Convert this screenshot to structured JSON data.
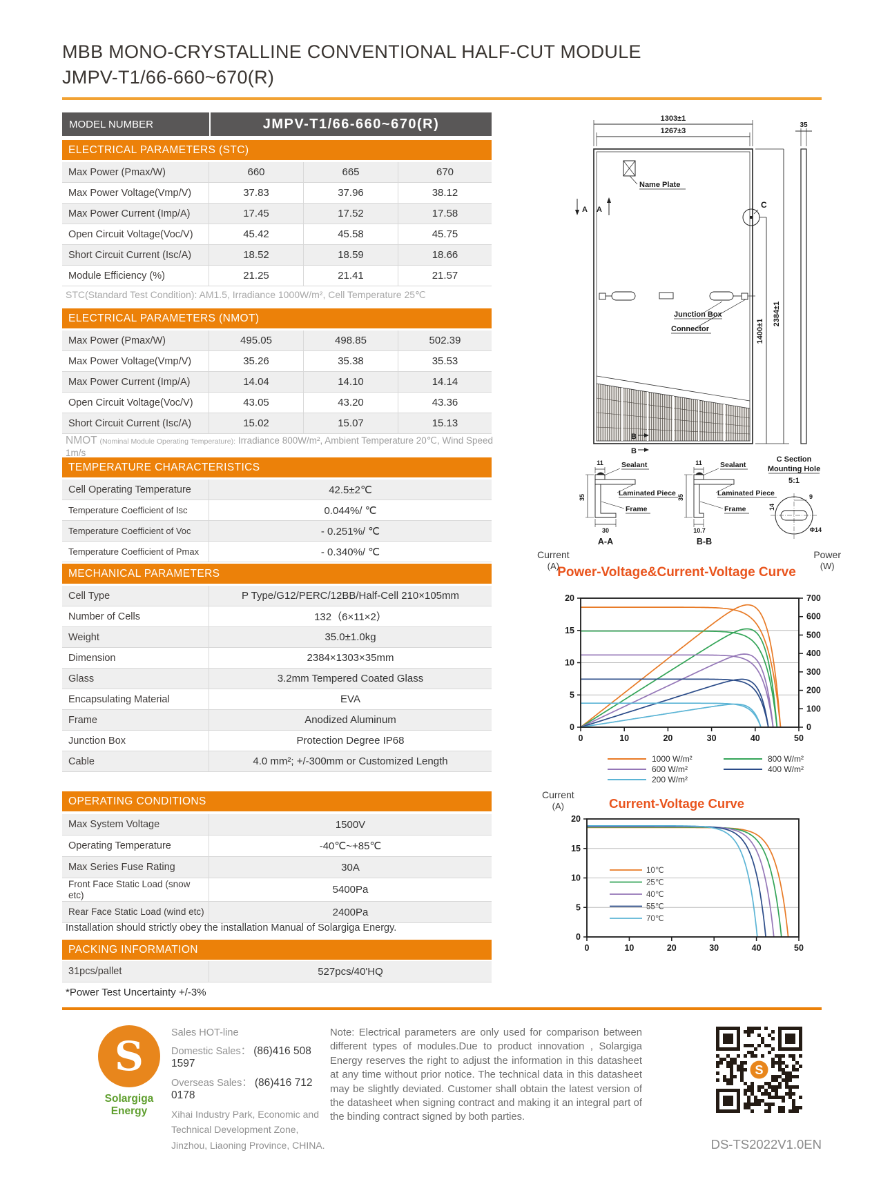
{
  "page": {
    "title_line1": "MBB MONO-CRYSTALLINE CONVENTIONAL HALF-CUT MODULE",
    "title_line2": "JMPV-T1/66-660~670(R)",
    "doc_code": "DS-TS2022V1.0EN"
  },
  "model": {
    "label": "MODEL NUMBER",
    "value": "JMPV-T1/66-660~670(R)"
  },
  "sections": {
    "stc": {
      "header": "ELECTRICAL PARAMETERS  (STC)",
      "rows": [
        [
          "Max Power (Pmax/W)",
          "660",
          "665",
          "670"
        ],
        [
          "Max Power Voltage(Vmp/V)",
          "37.83",
          "37.96",
          "38.12"
        ],
        [
          "Max Power Current (Imp/A)",
          "17.45",
          "17.52",
          "17.58"
        ],
        [
          "Open Circuit Voltage(Voc/V)",
          "45.42",
          "45.58",
          "45.75"
        ],
        [
          "Short Circuit Current (Isc/A)",
          "18.52",
          "18.59",
          "18.66"
        ],
        [
          "Module Efficiency (%)",
          "21.25",
          "21.41",
          "21.57"
        ]
      ],
      "footnote": "STC(Standard Test Condition): AM1.5, Irradiance 1000W/m², Cell Temperature 25℃"
    },
    "nmot": {
      "header": "ELECTRICAL PARAMETERS  (NMOT)",
      "rows": [
        [
          "Max Power (Pmax/W)",
          "495.05",
          "498.85",
          "502.39"
        ],
        [
          "Max Power Voltage(Vmp/V)",
          "35.26",
          "35.38",
          "35.53"
        ],
        [
          "Max Power Current (Imp/A)",
          "14.04",
          "14.10",
          "14.14"
        ],
        [
          "Open Circuit Voltage(Voc/V)",
          "43.05",
          "43.20",
          "43.36"
        ],
        [
          "Short Circuit Current (Isc/A)",
          "15.02",
          "15.07",
          "15.13"
        ]
      ],
      "footnote_title": "NMOT",
      "footnote_paren": "(Nominal Module Operating Temperature):",
      "footnote_rest": "Irradiance 800W/m², Ambient Temperature 20℃, Wind Speed 1m/s"
    },
    "temperature": {
      "header": "TEMPERATURE CHARACTERISTICS",
      "rows": [
        [
          "Cell Operating Temperature",
          "42.5±2℃"
        ],
        [
          "Temperature Coefficient of Isc",
          "0.044%/ ℃"
        ],
        [
          "Temperature Coefficient of Voc",
          "- 0.251%/ ℃"
        ],
        [
          "Temperature Coefficient of Pmax",
          "- 0.340%/ ℃"
        ]
      ]
    },
    "mechanical": {
      "header": "MECHANICAL PARAMETERS",
      "rows": [
        [
          "Cell Type",
          "P Type/G12/PERC/12BB/Half-Cell  210×105mm"
        ],
        [
          "Number of Cells",
          "132（6×11×2）"
        ],
        [
          "Weight",
          "35.0±1.0kg"
        ],
        [
          "Dimension",
          "2384×1303×35mm"
        ],
        [
          "Glass",
          "3.2mm Tempered Coated Glass"
        ],
        [
          "Encapsulating Material",
          "EVA"
        ],
        [
          "Frame",
          "Anodized Aluminum"
        ],
        [
          "Junction Box",
          "Protection Degree IP68"
        ],
        [
          "Cable",
          "4.0 mm²; +/-300mm or Customized Length"
        ]
      ]
    },
    "operating": {
      "header": "OPERATING CONDITIONS",
      "rows": [
        [
          "Max System Voltage",
          "1500V"
        ],
        [
          "Operating Temperature",
          "-40℃~+85℃"
        ],
        [
          "Max Series Fuse Rating",
          "30A"
        ],
        [
          "Front Face Static Load (snow etc)",
          "5400Pa"
        ],
        [
          "Rear Face Static Load (wind etc)",
          "2400Pa"
        ]
      ],
      "installation_note": "Installation should strictly obey the installation Manual of Solargiga Energy."
    },
    "packing": {
      "header": "PACKING INFORMATION",
      "rows": [
        [
          "31pcs/pallet",
          "527pcs/40'HQ"
        ]
      ],
      "uncertainty": "*Power Test Uncertainty  +/-3%"
    }
  },
  "diagram": {
    "dim_width": "1303±1",
    "dim_glass": "1267±3",
    "dim_thickness": "35",
    "dim_height": "2384±1",
    "dim_hole_height": "1400±1",
    "name_plate": "Name Plate",
    "junction_box": "Junction Box",
    "connector": "Connector",
    "a_label": "A",
    "b_label": "B",
    "c_label": "C",
    "section_aa": "A-A",
    "section_bb": "B-B",
    "sealant": "Sealant",
    "laminated_piece": "Laminated Piece",
    "frame": "Frame",
    "dim_lip": "11",
    "dim_frame_height": "35",
    "dim_aa_foot": "30",
    "dim_bb_foot": "10.7",
    "c_section_line1": "C Section",
    "c_section_line2": "Mounting Hole",
    "c_scale": "5:1",
    "dim_slot": "9",
    "dim_hole_dia": "Φ14",
    "dim_hole_w": "14"
  },
  "chart_data": [
    {
      "type": "line",
      "title": "Power-Voltage&Current-Voltage Curve",
      "y_left": {
        "label": "Current",
        "unit": "(A)",
        "min": 0,
        "max": 20,
        "ticks": [
          0,
          5,
          10,
          15,
          20
        ]
      },
      "y_right": {
        "label": "Power",
        "unit": "(W)",
        "min": 0,
        "max": 700,
        "ticks": [
          0,
          100,
          200,
          300,
          400,
          500,
          600,
          700
        ]
      },
      "x": {
        "min": 0,
        "max": 50,
        "ticks": [
          0,
          10,
          20,
          30,
          40,
          50
        ]
      },
      "legend": "below",
      "curves": [
        "current-voltage",
        "power-voltage"
      ],
      "series": [
        {
          "name": "1000 W/m²",
          "color": "#E87A25",
          "isc": 18.6,
          "voc": 45.8,
          "vmp": 37.9,
          "imp": 17.5,
          "pmax": 663
        },
        {
          "name": "800 W/m²",
          "color": "#33A457",
          "isc": 14.9,
          "voc": 45.0,
          "vmp": 37.5,
          "imp": 14.2,
          "pmax": 533
        },
        {
          "name": "600 W/m²",
          "color": "#9476B7",
          "isc": 11.2,
          "voc": 44.1,
          "vmp": 37.0,
          "imp": 10.7,
          "pmax": 396
        },
        {
          "name": "400 W/m²",
          "color": "#2A4B88",
          "isc": 7.45,
          "voc": 43.0,
          "vmp": 36.3,
          "imp": 7.15,
          "pmax": 260
        },
        {
          "name": "200 W/m²",
          "color": "#5BB4D5",
          "isc": 3.72,
          "voc": 41.3,
          "vmp": 35.2,
          "imp": 3.55,
          "pmax": 125
        }
      ]
    },
    {
      "type": "line",
      "title": "Current-Voltage Curve",
      "y_left": {
        "label": "Current",
        "unit": "(A)",
        "min": 0,
        "max": 20,
        "ticks": [
          0,
          5,
          10,
          15,
          20
        ]
      },
      "x": {
        "min": 0,
        "max": 50,
        "ticks": [
          0,
          10,
          20,
          30,
          40,
          50
        ]
      },
      "legend": "inside",
      "curves": [
        "current-voltage"
      ],
      "series": [
        {
          "name": "10℃",
          "color": "#E87A25",
          "isc": 18.55,
          "voc": 47.5,
          "vmp": 39.4,
          "imp": 17.6
        },
        {
          "name": "25℃",
          "color": "#33A457",
          "isc": 18.62,
          "voc": 45.9,
          "vmp": 38.0,
          "imp": 17.6
        },
        {
          "name": "40℃",
          "color": "#9476B7",
          "isc": 18.7,
          "voc": 44.1,
          "vmp": 36.5,
          "imp": 17.6
        },
        {
          "name": "55℃",
          "color": "#2A4B88",
          "isc": 18.78,
          "voc": 42.2,
          "vmp": 34.9,
          "imp": 17.6
        },
        {
          "name": "70℃",
          "color": "#5BB4D5",
          "isc": 18.85,
          "voc": 40.2,
          "vmp": 33.2,
          "imp": 17.5
        }
      ]
    }
  ],
  "footer": {
    "brand": "Solargiga Energy",
    "logo_letter": "S",
    "hotline_label": "Sales HOT-line",
    "domestic_label": "Domestic Sales：",
    "domestic_value": "(86)416 508 1597",
    "overseas_label": "Overseas Sales：",
    "overseas_value": "(86)416 712 0178",
    "address": "Xihai Industry Park, Economic and Technical Development Zone, Jinzhou, Liaoning Province, CHINA.",
    "note": "Note:  Electrical parameters are only used for comparison between different types of modules.Due to product innovation , Solargiga Energy reserves the right to adjust the information in this datasheet at any time without prior notice. The technical data in this datasheet may be slightly deviated. Customer shall obtain the latest version of the datasheet when signing  contract  and  making it an integral part of the binding contract signed by both parties."
  },
  "colors": {
    "accent_orange": "#EC8109",
    "bar_gray": "#595757",
    "chart_title": "#E9541D",
    "logo_orange": "#E8861C",
    "logo_green": "#5E9E2D"
  }
}
